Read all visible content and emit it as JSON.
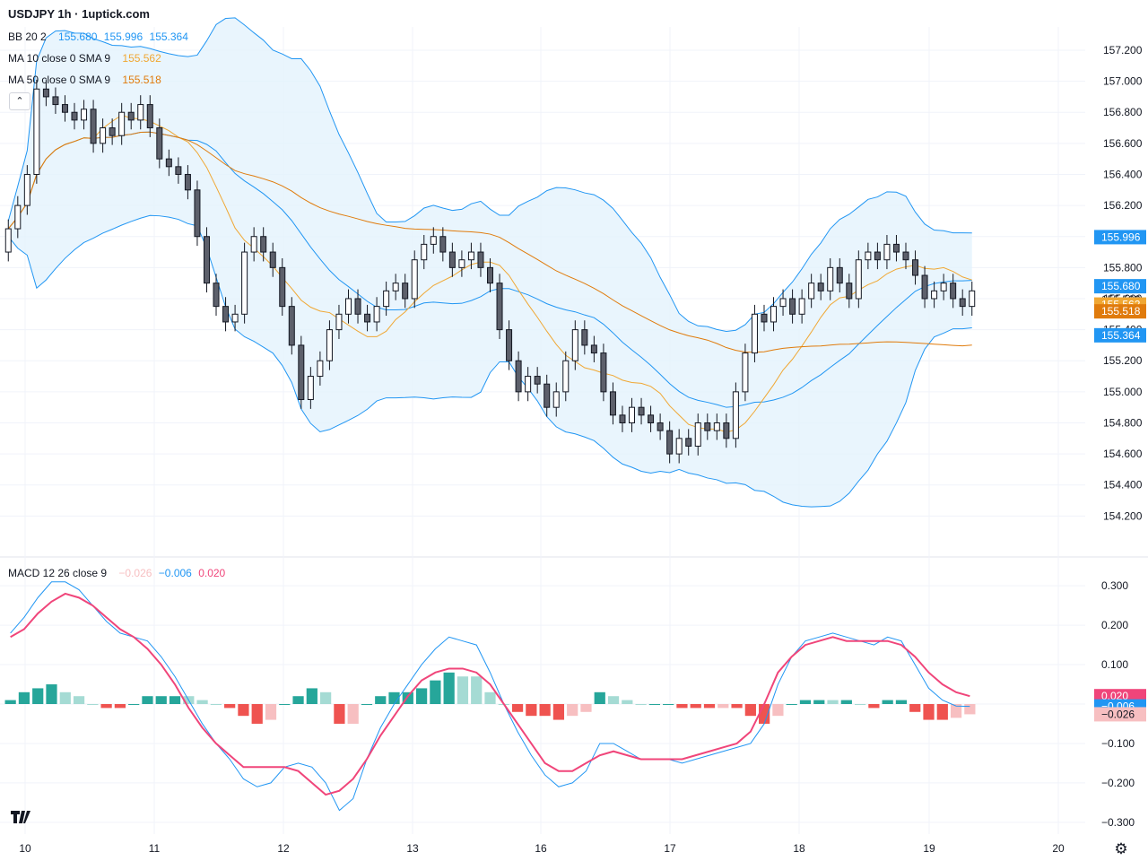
{
  "header": {
    "title": "USDJPY 1h · 1uptick.com"
  },
  "legend": {
    "bb": {
      "label": "BB 20 2",
      "basis": "155.680",
      "upper": "155.996",
      "lower": "155.364"
    },
    "ma10": {
      "label": "MA 10 close 0 SMA 9",
      "value": "155.562"
    },
    "ma50": {
      "label": "MA 50 close 0 SMA 9",
      "value": "155.518"
    },
    "macd": {
      "label": "MACD 12 26 close 9",
      "hist": "−0.026",
      "macd": "−0.006",
      "signal": "0.020"
    }
  },
  "colors": {
    "bb_line": "#2196f3",
    "bb_fill": "#e3f2fd",
    "ma10": "#f0a733",
    "ma50": "#e07b0c",
    "macd_line": "#2196f3",
    "signal_line": "#f0457a",
    "hist_up_strong": "#26a69a",
    "hist_up_weak": "#a5dbd4",
    "hist_down_strong": "#ef5350",
    "hist_down_weak": "#f7bfc1",
    "candle_up": "#ffffff",
    "candle_down": "#5d606b",
    "wick": "#131722"
  },
  "icons": {
    "collapse": "chevron-up-icon",
    "logo": "tradingview-logo-icon",
    "settings": "gear-icon"
  },
  "chart_data": [
    {
      "type": "candlestick",
      "title": "USDJPY 1h · 1uptick.com",
      "x_ticks": [
        "10",
        "11",
        "12",
        "13",
        "16",
        "17",
        "18",
        "19",
        "20"
      ],
      "y_ticks": [
        "154.200",
        "154.400",
        "154.600",
        "154.800",
        "155.000",
        "155.200",
        "155.400",
        "155.600",
        "155.800",
        "156.000",
        "156.200",
        "156.400",
        "156.600",
        "156.800",
        "157.000",
        "157.200"
      ],
      "ylim": [
        154.0,
        157.35
      ],
      "grid": true,
      "price_labels": [
        {
          "value": "155.996",
          "series": "bb_upper"
        },
        {
          "value": "155.680",
          "series": "bb_basis"
        },
        {
          "value": "155.593",
          "series": "last_price"
        },
        {
          "value": "155.562",
          "series": "ma10"
        },
        {
          "value": "155.518",
          "series": "ma50"
        },
        {
          "value": "155.364",
          "series": "bb_lower"
        }
      ],
      "candles_close": [
        156.05,
        156.2,
        156.4,
        156.95,
        156.9,
        156.85,
        156.8,
        156.75,
        156.82,
        156.6,
        156.7,
        156.65,
        156.8,
        156.75,
        156.85,
        156.7,
        156.5,
        156.45,
        156.4,
        156.3,
        156.0,
        155.7,
        155.55,
        155.45,
        155.5,
        155.9,
        156.0,
        155.9,
        155.8,
        155.55,
        155.3,
        154.95,
        155.1,
        155.2,
        155.4,
        155.5,
        155.6,
        155.5,
        155.45,
        155.55,
        155.65,
        155.7,
        155.6,
        155.85,
        155.95,
        156.0,
        155.9,
        155.8,
        155.85,
        155.9,
        155.8,
        155.7,
        155.4,
        155.2,
        155.0,
        155.1,
        155.05,
        154.9,
        155.0,
        155.2,
        155.4,
        155.3,
        155.25,
        155.0,
        154.85,
        154.8,
        154.9,
        154.85,
        154.8,
        154.75,
        154.6,
        154.7,
        154.65,
        154.8,
        154.75,
        154.8,
        154.7,
        155.0,
        155.25,
        155.5,
        155.45,
        155.55,
        155.6,
        155.5,
        155.6,
        155.7,
        155.65,
        155.8,
        155.7,
        155.6,
        155.85,
        155.9,
        155.85,
        155.95,
        155.9,
        155.85,
        155.75,
        155.6,
        155.65,
        155.7,
        155.6,
        155.55,
        155.65
      ],
      "candles_open": [
        155.9,
        156.05,
        156.2,
        156.4,
        156.95,
        156.9,
        156.85,
        156.8,
        156.75,
        156.82,
        156.6,
        156.7,
        156.65,
        156.8,
        156.75,
        156.85,
        156.7,
        156.5,
        156.45,
        156.4,
        156.3,
        156.0,
        155.7,
        155.55,
        155.45,
        155.5,
        155.9,
        156.0,
        155.9,
        155.8,
        155.55,
        155.3,
        154.95,
        155.1,
        155.2,
        155.4,
        155.5,
        155.6,
        155.5,
        155.45,
        155.55,
        155.65,
        155.7,
        155.6,
        155.85,
        155.95,
        156.0,
        155.9,
        155.8,
        155.85,
        155.9,
        155.8,
        155.7,
        155.4,
        155.2,
        155.0,
        155.1,
        155.05,
        154.9,
        155.0,
        155.2,
        155.4,
        155.3,
        155.25,
        155.0,
        154.85,
        154.8,
        154.9,
        154.85,
        154.8,
        154.75,
        154.6,
        154.7,
        154.65,
        154.8,
        154.75,
        154.8,
        154.7,
        155.0,
        155.25,
        155.5,
        155.45,
        155.55,
        155.6,
        155.5,
        155.6,
        155.7,
        155.65,
        155.8,
        155.7,
        155.6,
        155.85,
        155.9,
        155.85,
        155.95,
        155.9,
        155.85,
        155.75,
        155.6,
        155.65,
        155.7,
        155.6,
        155.55
      ]
    },
    {
      "type": "macd",
      "title": "MACD 12 26 close 9",
      "y_ticks": [
        "0.300",
        "0.200",
        "0.100",
        "0.000",
        "−0.100",
        "−0.200",
        "−0.300"
      ],
      "ylim": [
        -0.33,
        0.33
      ],
      "price_labels": [
        {
          "value": "0.020",
          "series": "signal"
        },
        {
          "value": "−0.006",
          "series": "macd"
        },
        {
          "value": "−0.026",
          "series": "histogram"
        }
      ],
      "macd": [
        0.18,
        0.22,
        0.27,
        0.31,
        0.31,
        0.29,
        0.25,
        0.21,
        0.18,
        0.17,
        0.16,
        0.12,
        0.07,
        0.01,
        -0.05,
        -0.1,
        -0.14,
        -0.19,
        -0.21,
        -0.2,
        -0.16,
        -0.15,
        -0.16,
        -0.2,
        -0.27,
        -0.24,
        -0.14,
        -0.06,
        0.0,
        0.05,
        0.1,
        0.14,
        0.17,
        0.16,
        0.15,
        0.08,
        0.0,
        -0.07,
        -0.13,
        -0.18,
        -0.21,
        -0.2,
        -0.17,
        -0.1,
        -0.1,
        -0.12,
        -0.14,
        -0.14,
        -0.14,
        -0.15,
        -0.14,
        -0.13,
        -0.12,
        -0.11,
        -0.1,
        -0.05,
        0.05,
        0.12,
        0.16,
        0.17,
        0.18,
        0.17,
        0.16,
        0.15,
        0.17,
        0.16,
        0.1,
        0.04,
        0.01,
        -0.005,
        -0.006
      ],
      "signal": [
        0.17,
        0.19,
        0.23,
        0.26,
        0.28,
        0.27,
        0.25,
        0.22,
        0.19,
        0.17,
        0.14,
        0.1,
        0.05,
        -0.01,
        -0.06,
        -0.1,
        -0.13,
        -0.16,
        -0.16,
        -0.16,
        -0.16,
        -0.17,
        -0.2,
        -0.23,
        -0.22,
        -0.19,
        -0.14,
        -0.08,
        -0.03,
        0.02,
        0.06,
        0.08,
        0.09,
        0.09,
        0.08,
        0.05,
        0.0,
        -0.05,
        -0.1,
        -0.15,
        -0.17,
        -0.17,
        -0.15,
        -0.13,
        -0.12,
        -0.13,
        -0.14,
        -0.14,
        -0.14,
        -0.14,
        -0.13,
        -0.12,
        -0.11,
        -0.1,
        -0.07,
        0.0,
        0.08,
        0.12,
        0.15,
        0.16,
        0.17,
        0.16,
        0.16,
        0.16,
        0.16,
        0.15,
        0.12,
        0.08,
        0.05,
        0.03,
        0.02
      ]
    }
  ]
}
